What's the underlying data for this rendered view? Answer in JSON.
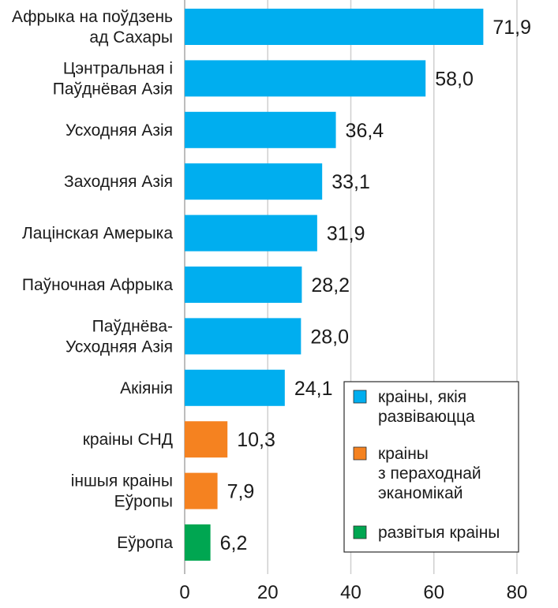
{
  "chart_data": {
    "type": "bar",
    "orientation": "horizontal",
    "categories": [
      [
        "Афрыка на поўдзень",
        "ад Сахары"
      ],
      [
        "Цэнтральная і",
        "Паўднёвая Азія"
      ],
      [
        "Усходняя Азія"
      ],
      [
        "Заходняя Азія"
      ],
      [
        "Лацінская Амерыка"
      ],
      [
        "Паўночная Афрыка"
      ],
      [
        "Паўднёва-",
        "Усходняя Азія"
      ],
      [
        "Акіянія"
      ],
      [
        "краіны СНД"
      ],
      [
        "іншыя краіны",
        "Еўропы"
      ],
      [
        "Еўропа"
      ]
    ],
    "values": [
      71.9,
      58.0,
      36.4,
      33.1,
      31.9,
      28.2,
      28.0,
      24.1,
      10.3,
      7.9,
      6.2
    ],
    "value_labels": [
      "71,9",
      "58,0",
      "36,4",
      "33,1",
      "31,9",
      "28,2",
      "28,0",
      "24,1",
      "10,3",
      "7,9",
      "6,2"
    ],
    "groups": [
      0,
      0,
      0,
      0,
      0,
      0,
      0,
      0,
      1,
      1,
      2
    ],
    "legend": [
      {
        "lines": [
          "краіны, якія",
          "развіваюцца"
        ],
        "color": "#00aeef"
      },
      {
        "lines": [
          "краіны",
          "з пераходнай",
          "эканомікай"
        ],
        "color": "#f58220"
      },
      {
        "lines": [
          "развітыя краіны"
        ],
        "color": "#00a651"
      }
    ],
    "legend_position": "bottom-right",
    "xlim": [
      0,
      80
    ],
    "xticks": [
      0,
      20,
      40,
      60,
      80
    ],
    "grid": true,
    "title": "",
    "xlabel": "",
    "ylabel": ""
  }
}
